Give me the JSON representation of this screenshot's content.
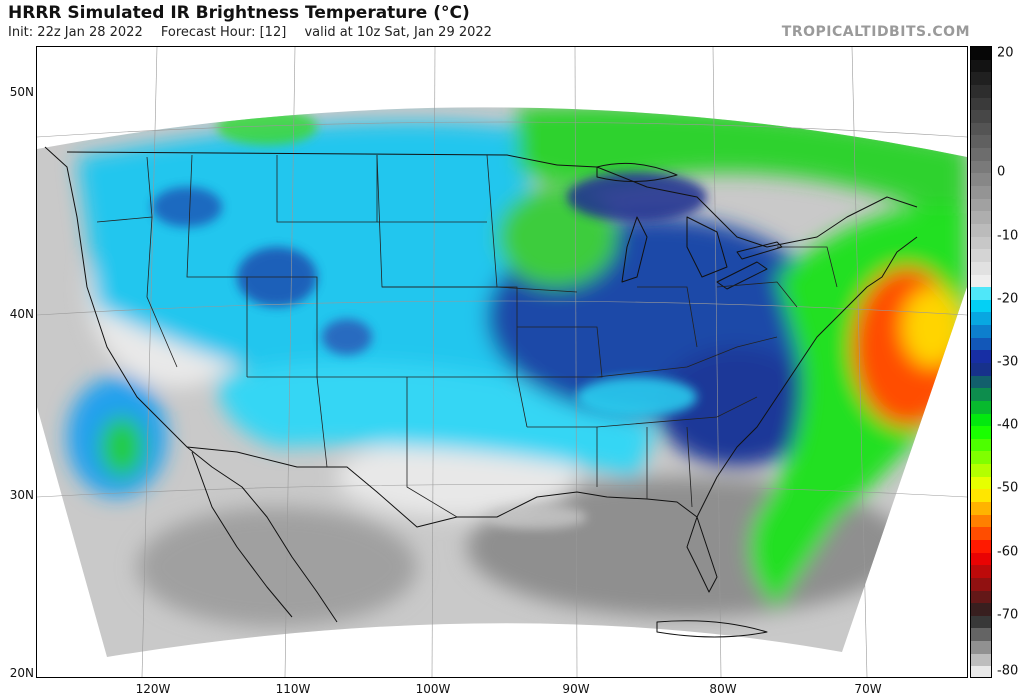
{
  "header": {
    "title": "HRRR Simulated IR Brightness Temperature (°C)",
    "init": "Init: 22z Jan 28 2022",
    "forecast_hour": "Forecast Hour: [12]",
    "valid": "valid at 10z Sat, Jan 29 2022",
    "brand": "TROPICALTIDBITS.COM"
  },
  "map": {
    "latitude_labels": [
      "50N",
      "40N",
      "30N",
      "20N"
    ],
    "longitude_labels": [
      "120W",
      "110W",
      "100W",
      "90W",
      "80W",
      "70W"
    ]
  },
  "colorbar": {
    "ticks": [
      "20",
      "0",
      "-10",
      "-20",
      "-30",
      "-40",
      "-50",
      "-60",
      "-70",
      "-80"
    ],
    "range": [
      -80,
      20
    ],
    "stops": [
      {
        "value": 20,
        "color": "#000000"
      },
      {
        "value": -17,
        "color": "#eeeeee"
      },
      {
        "value": -20,
        "color": "#00e4ff"
      },
      {
        "value": -30,
        "color": "#1a1a9a"
      },
      {
        "value": -40,
        "color": "#00ff00"
      },
      {
        "value": -50,
        "color": "#ffff00"
      },
      {
        "value": -60,
        "color": "#ff0000"
      },
      {
        "value": -70,
        "color": "#222222"
      },
      {
        "value": -80,
        "color": "#ffffff"
      }
    ]
  },
  "colors": {
    "clear_sky": "#c8c8c8",
    "cold_clouds": "#00d8ff",
    "deep_clouds": "#1e3a9a",
    "very_cold_clouds": "#22ee22",
    "coldest_tops": "#ff2a00"
  }
}
